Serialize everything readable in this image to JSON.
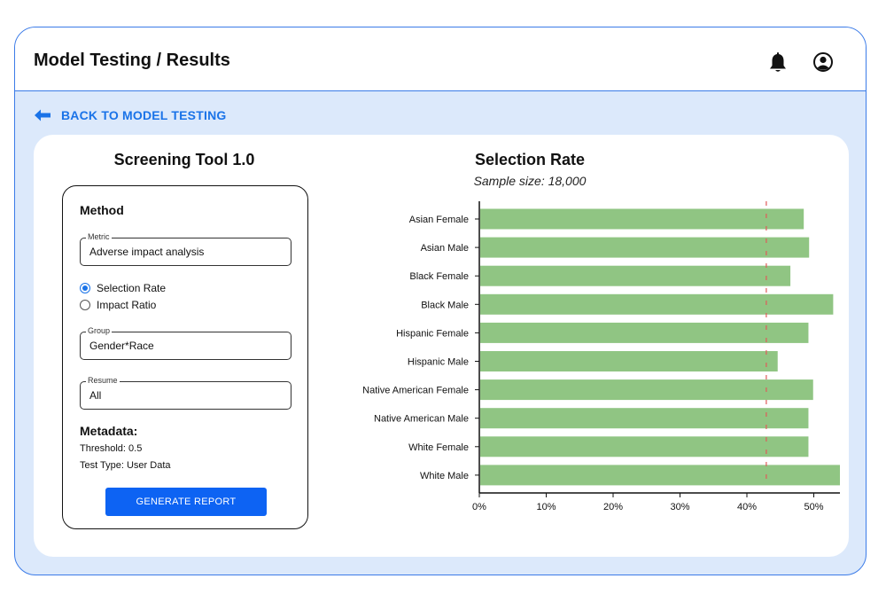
{
  "header": {
    "title": "Model Testing / Results"
  },
  "nav": {
    "back_label": "BACK TO MODEL TESTING"
  },
  "panel": {
    "tool_title": "Screening Tool 1.0",
    "method_label": "Method",
    "metric": {
      "label": "Metric",
      "value": "Adverse impact analysis"
    },
    "radios": [
      {
        "label": "Selection Rate",
        "checked": true
      },
      {
        "label": "Impact Ratio",
        "checked": false
      }
    ],
    "group": {
      "label": "Group",
      "value": "Gender*Race"
    },
    "resume": {
      "label": "Resume",
      "value": "All"
    },
    "metadata": {
      "title": "Metadata:",
      "threshold": "Threshold: 0.5",
      "test_type": "Test Type: User Data"
    },
    "generate_label": "GENERATE REPORT"
  },
  "icons": {
    "bell": "bell-icon",
    "user": "user-circle-icon",
    "back": "arrow-left-icon"
  },
  "colors": {
    "accent": "#1a73e8",
    "bar": "#90c583",
    "threshold_line": "#e05a5a",
    "button": "#0d63f3"
  },
  "chart_data": {
    "type": "bar",
    "orientation": "horizontal",
    "title": "Selection Rate",
    "subtitle": "Sample size: 18,000",
    "categories": [
      "Asian Female",
      "Asian Male",
      "Black Female",
      "Black Male",
      "Hispanic Female",
      "Hispanic Male",
      "Native American Female",
      "Native American Male",
      "White Female",
      "White Male"
    ],
    "values": [
      48.5,
      49.3,
      46.5,
      52.9,
      49.2,
      44.6,
      49.9,
      49.2,
      49.2,
      54.1
    ],
    "xticks": [
      "0%",
      "10%",
      "20%",
      "30%",
      "40%",
      "50%"
    ],
    "xlim": [
      0,
      55
    ],
    "threshold": 42.9,
    "grid": false
  }
}
